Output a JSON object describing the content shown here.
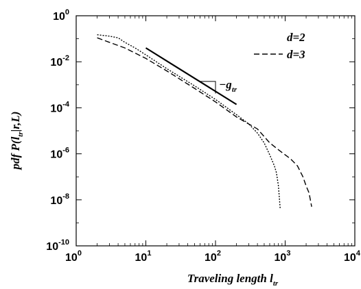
{
  "chart_data": {
    "type": "line",
    "xlabel": "Traveling length",
    "xlabel_sub": "tr",
    "ylabel": "pdf P(l",
    "ylabel_sub": "tr",
    "ylabel_tail": "|r,L)",
    "xscale": "log",
    "yscale": "log",
    "xlim": [
      1,
      10000
    ],
    "ylim": [
      1e-10,
      1
    ],
    "x_ticks": [
      {
        "base": "10",
        "exp": "0",
        "value": 1
      },
      {
        "base": "10",
        "exp": "1",
        "value": 10
      },
      {
        "base": "10",
        "exp": "2",
        "value": 100
      },
      {
        "base": "10",
        "exp": "3",
        "value": 1000
      },
      {
        "base": "10",
        "exp": "4",
        "value": 10000
      }
    ],
    "y_ticks": [
      {
        "base": "10",
        "exp": "0",
        "value": 1
      },
      {
        "base": "10",
        "exp": "-2",
        "value": 0.01
      },
      {
        "base": "10",
        "exp": "-4",
        "value": 0.0001
      },
      {
        "base": "10",
        "exp": "-6",
        "value": 1e-06
      },
      {
        "base": "10",
        "exp": "-8",
        "value": 1e-08
      },
      {
        "base": "10",
        "exp": "-10",
        "value": 1e-10
      }
    ],
    "grid": false,
    "legend_position": "top-right",
    "series": [
      {
        "name": "d=2",
        "style": "dotted",
        "x": [
          2,
          3,
          4,
          5,
          7,
          10,
          20,
          50,
          100,
          200,
          300,
          400,
          500,
          600,
          700,
          750,
          800,
          850
        ],
        "y": [
          0.15,
          0.13,
          0.11,
          0.07,
          0.04,
          0.02,
          0.005,
          0.0009,
          0.00023,
          5e-05,
          2e-05,
          8e-06,
          3e-06,
          9e-07,
          3e-07,
          1.5e-07,
          4e-08,
          4e-09
        ]
      },
      {
        "name": "d=3",
        "style": "dashed",
        "x": [
          2,
          3,
          5,
          10,
          20,
          50,
          100,
          200,
          400,
          600,
          800,
          1000,
          1200,
          1500,
          1800,
          2000,
          2200,
          2400
        ],
        "y": [
          0.11,
          0.07,
          0.04,
          0.014,
          0.004,
          0.0007,
          0.00018,
          4e-05,
          1.2e-05,
          3e-06,
          1.5e-06,
          9e-07,
          6e-07,
          3e-07,
          1e-07,
          4e-08,
          2e-08,
          5e-09
        ]
      },
      {
        "name": "",
        "style": "solid",
        "x": [
          10,
          200
        ],
        "y": [
          0.04,
          0.00014
        ]
      }
    ],
    "annotation": {
      "text": "−g",
      "sub": "tr",
      "triangle": {
        "x1": 60,
        "x2": 100,
        "y_top": 0.0014,
        "y_bottom": 0.00042
      }
    }
  }
}
